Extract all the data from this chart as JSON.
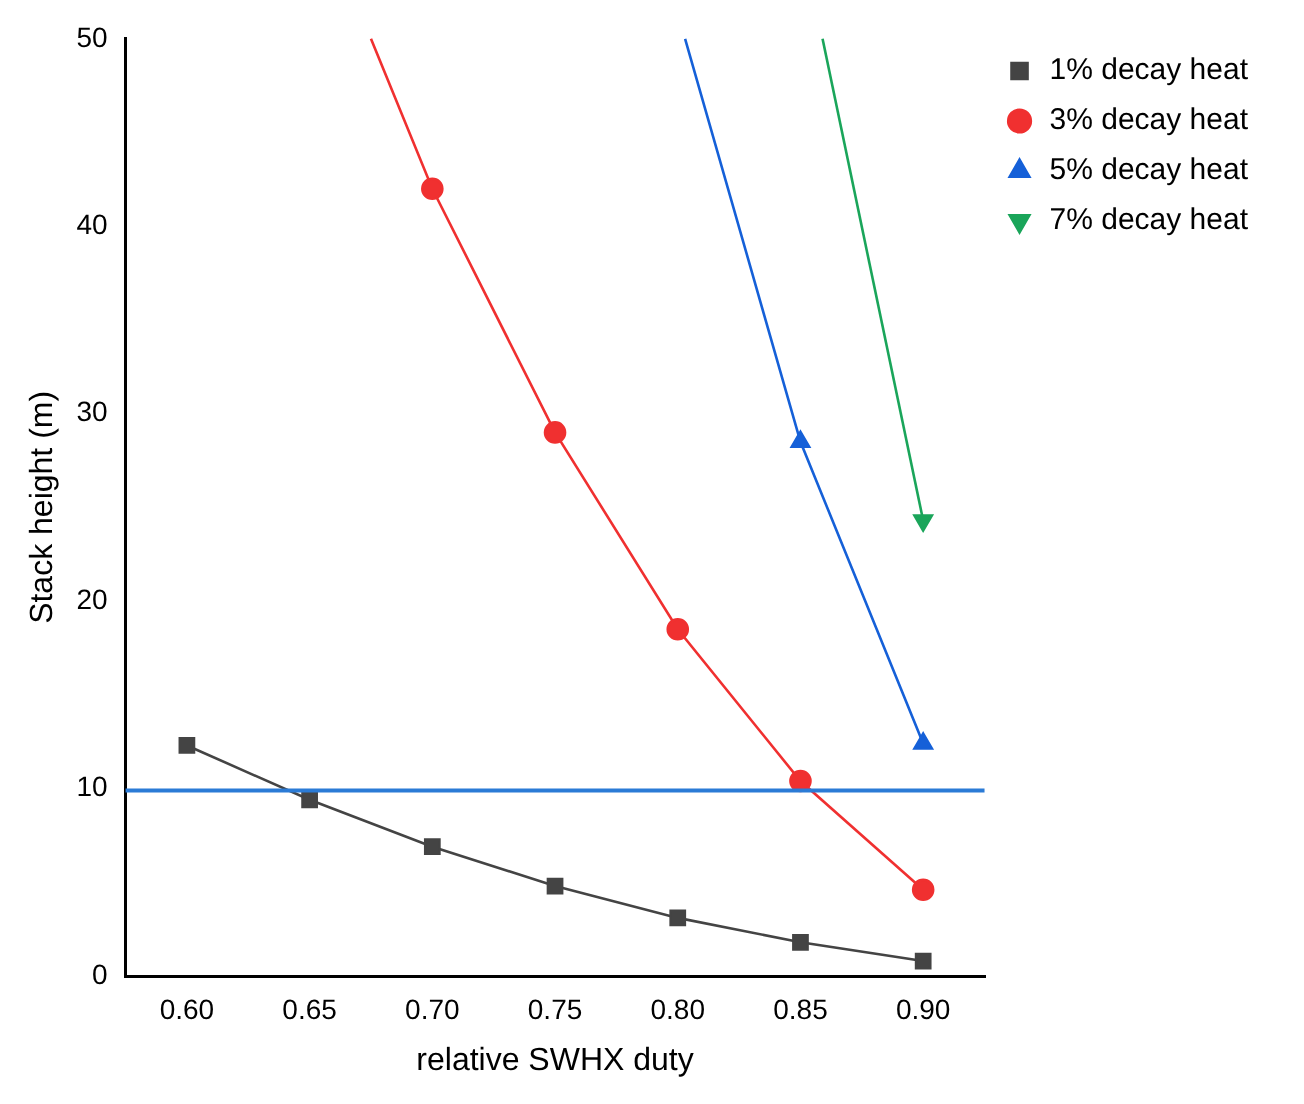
{
  "chart_data": {
    "type": "line",
    "xlabel": "relative SWHX duty",
    "ylabel": "Stack height (m)",
    "xlim": [
      0.575,
      0.925
    ],
    "ylim": [
      0,
      50
    ],
    "xticks": [
      {
        "value": 0.6,
        "label": "0.60"
      },
      {
        "value": 0.65,
        "label": "0.65"
      },
      {
        "value": 0.7,
        "label": "0.70"
      },
      {
        "value": 0.75,
        "label": "0.75"
      },
      {
        "value": 0.8,
        "label": "0.80"
      },
      {
        "value": 0.85,
        "label": "0.85"
      },
      {
        "value": 0.9,
        "label": "0.90"
      }
    ],
    "yticks": [
      0,
      10,
      20,
      30,
      40,
      50
    ],
    "grid": false,
    "legend": "top right",
    "series": [
      {
        "name": "1% decay heat",
        "color": "#444444",
        "marker": "square",
        "x": [
          0.6,
          0.65,
          0.7,
          0.75,
          0.8,
          0.85,
          0.9
        ],
        "values": [
          12.3,
          9.4,
          6.9,
          4.8,
          3.1,
          1.8,
          0.8
        ]
      },
      {
        "name": "3% decay heat",
        "color": "#f03030",
        "marker": "circle",
        "x": [
          0.675,
          0.7,
          0.75,
          0.8,
          0.85,
          0.9
        ],
        "values": [
          50,
          42,
          29,
          18.5,
          10.4,
          4.6
        ]
      },
      {
        "name": "5% decay heat",
        "color": "#1560d8",
        "marker": "triangle",
        "x": [
          0.803,
          0.85,
          0.9
        ],
        "values": [
          50,
          28.5,
          12.4
        ]
      },
      {
        "name": "7% decay heat",
        "color": "#1aa55a",
        "marker": "triangle_down",
        "x": [
          0.859,
          0.9
        ],
        "values": [
          50,
          24.3
        ]
      }
    ],
    "ref_lines": [
      {
        "axis": "y",
        "value": 9.9,
        "color": "#2b7bd6"
      }
    ]
  }
}
